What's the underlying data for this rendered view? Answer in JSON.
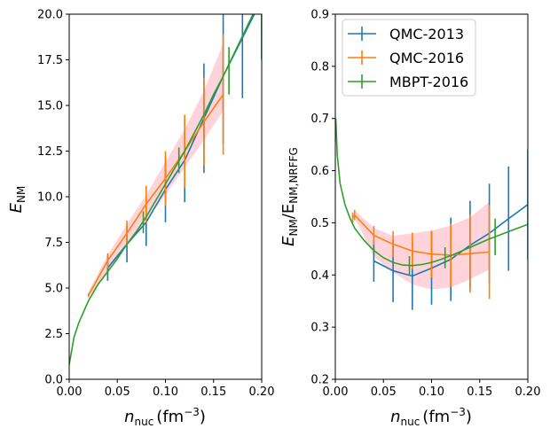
{
  "chart_data": [
    {
      "type": "line",
      "panel": "left",
      "xlabel": "n_nuc (fm^-3)",
      "xlabel_main": "n",
      "xlabel_sub": "nuc",
      "xlabel_units": "(fm",
      "xlabel_exp": "−3",
      "xlabel_close": ")",
      "ylabel": "E_NM",
      "ylabel_main": "E",
      "ylabel_sub": "NM",
      "xlim": [
        0,
        0.2
      ],
      "ylim": [
        0,
        20
      ],
      "xticks": [
        0,
        0.05,
        0.1,
        0.15,
        0.2
      ],
      "xtick_labels": [
        "0.00",
        "0.05",
        "0.10",
        "0.15",
        "0.20"
      ],
      "yticks": [
        0,
        2.5,
        5,
        7.5,
        10,
        12.5,
        15,
        17.5,
        20
      ],
      "ytick_labels": [
        "0.0",
        "2.5",
        "5.0",
        "7.5",
        "10.0",
        "12.5",
        "15.0",
        "17.5",
        "20.0"
      ],
      "band": {
        "name": "uncertainty band",
        "color": "#ffb6c1",
        "x": [
          0.02,
          0.04,
          0.06,
          0.08,
          0.1,
          0.12,
          0.14,
          0.16
        ],
        "lower": [
          4.5,
          5.9,
          7.3,
          8.7,
          10.1,
          11.6,
          13.1,
          14.7
        ],
        "upper": [
          4.8,
          6.8,
          8.5,
          10.1,
          11.9,
          13.7,
          15.8,
          18.4
        ]
      },
      "series": [
        {
          "name": "QMC-2013",
          "color": "#1f77b4",
          "x": [
            0.04,
            0.06,
            0.08,
            0.1,
            0.12,
            0.14,
            0.16,
            0.18,
            0.2
          ],
          "y": [
            6.1,
            7.4,
            8.6,
            10.4,
            12.0,
            14.3,
            16.6,
            18.7,
            20.8
          ],
          "err": [
            0.7,
            1.0,
            1.3,
            1.8,
            2.3,
            3.0,
            3.7,
            3.3,
            3.2
          ]
        },
        {
          "name": "QMC-2016",
          "color": "#ff7f0e",
          "x": [
            0.02,
            0.04,
            0.06,
            0.08,
            0.1,
            0.12,
            0.14,
            0.16
          ],
          "y": [
            4.6,
            6.5,
            8.0,
            9.6,
            11.0,
            12.5,
            14.1,
            15.6
          ],
          "err": [
            0.1,
            0.4,
            0.7,
            1.0,
            1.5,
            2.0,
            2.4,
            3.3
          ]
        },
        {
          "name": "MBPT-2016",
          "color": "#2ca02c",
          "x": [
            0.0,
            0.005,
            0.01,
            0.02,
            0.03,
            0.04,
            0.05,
            0.06,
            0.07,
            0.08,
            0.09,
            0.1,
            0.11,
            0.12,
            0.13,
            0.14,
            0.15,
            0.16,
            0.17,
            0.18,
            0.19,
            0.2
          ],
          "y": [
            0.8,
            2.3,
            3.1,
            4.3,
            5.2,
            5.9,
            6.6,
            7.4,
            8.1,
            8.9,
            9.8,
            10.7,
            11.6,
            12.5,
            13.5,
            14.5,
            15.6,
            16.6,
            17.7,
            18.8,
            19.9,
            21.0
          ],
          "err_points": [
            {
              "x": 0.04,
              "y": 5.9,
              "err": 0.2
            },
            {
              "x": 0.077,
              "y": 8.6,
              "err": 0.6
            },
            {
              "x": 0.114,
              "y": 12.0,
              "err": 0.7
            },
            {
              "x": 0.166,
              "y": 16.9,
              "err": 1.3
            },
            {
              "x": 0.2,
              "y": 21.0,
              "err": 3.5
            }
          ]
        }
      ]
    },
    {
      "type": "line",
      "panel": "right",
      "xlabel": "n_nuc (fm^-3)",
      "xlabel_main": "n",
      "xlabel_sub": "nuc",
      "xlabel_units": "(fm",
      "xlabel_exp": "−3",
      "xlabel_close": ")",
      "ylabel": "E_NM/E_NM,NRFFG",
      "ylabel_main": "E",
      "ylabel_sub": "NM",
      "ylabel_slash": "/E",
      "ylabel_sub2": "NM,NRFFG",
      "xlim": [
        0,
        0.2
      ],
      "ylim": [
        0.2,
        0.9
      ],
      "xticks": [
        0,
        0.05,
        0.1,
        0.15,
        0.2
      ],
      "xtick_labels": [
        "0.00",
        "0.05",
        "0.10",
        "0.15",
        "0.20"
      ],
      "yticks": [
        0.2,
        0.3,
        0.4,
        0.5,
        0.6,
        0.7,
        0.8,
        0.9
      ],
      "ytick_labels": [
        "0.2",
        "0.3",
        "0.4",
        "0.5",
        "0.6",
        "0.7",
        "0.8",
        "0.9"
      ],
      "legend_position": "top-left",
      "band": {
        "name": "uncertainty band",
        "color": "#ffb6c1",
        "x": [
          0.02,
          0.04,
          0.06,
          0.08,
          0.1,
          0.12,
          0.14,
          0.16
        ],
        "lower": [
          0.51,
          0.435,
          0.405,
          0.382,
          0.372,
          0.376,
          0.392,
          0.41
        ],
        "upper": [
          0.525,
          0.49,
          0.475,
          0.48,
          0.485,
          0.495,
          0.51,
          0.54
        ]
      },
      "series": [
        {
          "name": "QMC-2013",
          "color": "#1f77b4",
          "x": [
            0.04,
            0.06,
            0.08,
            0.1,
            0.12,
            0.14,
            0.16,
            0.18,
            0.2
          ],
          "y": [
            0.427,
            0.408,
            0.398,
            0.413,
            0.43,
            0.457,
            0.48,
            0.508,
            0.535
          ],
          "err": [
            0.04,
            0.06,
            0.065,
            0.07,
            0.08,
            0.085,
            0.095,
            0.1,
            0.105
          ]
        },
        {
          "name": "QMC-2016",
          "color": "#ff7f0e",
          "x": [
            0.018,
            0.02,
            0.04,
            0.06,
            0.08,
            0.1,
            0.12,
            0.14,
            0.16
          ],
          "y": [
            0.51,
            0.515,
            0.476,
            0.459,
            0.446,
            0.44,
            0.438,
            0.441,
            0.444
          ],
          "err": [
            0.01,
            0.01,
            0.018,
            0.025,
            0.035,
            0.045,
            0.06,
            0.075,
            0.09
          ]
        },
        {
          "name": "MBPT-2016",
          "color": "#2ca02c",
          "x": [
            0.0005,
            0.002,
            0.005,
            0.01,
            0.015,
            0.02,
            0.03,
            0.04,
            0.05,
            0.06,
            0.07,
            0.08,
            0.09,
            0.1,
            0.11,
            0.12,
            0.13,
            0.14,
            0.15,
            0.16,
            0.17,
            0.18,
            0.19,
            0.2
          ],
          "y": [
            0.7,
            0.63,
            0.575,
            0.535,
            0.51,
            0.49,
            0.466,
            0.447,
            0.433,
            0.424,
            0.419,
            0.418,
            0.42,
            0.424,
            0.43,
            0.437,
            0.445,
            0.453,
            0.461,
            0.469,
            0.476,
            0.483,
            0.49,
            0.497
          ],
          "err_points": [
            {
              "x": 0.04,
              "y": 0.447,
              "err": 0.004
            },
            {
              "x": 0.077,
              "y": 0.418,
              "err": 0.018
            },
            {
              "x": 0.114,
              "y": 0.433,
              "err": 0.02
            },
            {
              "x": 0.166,
              "y": 0.473,
              "err": 0.035
            }
          ]
        }
      ]
    }
  ]
}
